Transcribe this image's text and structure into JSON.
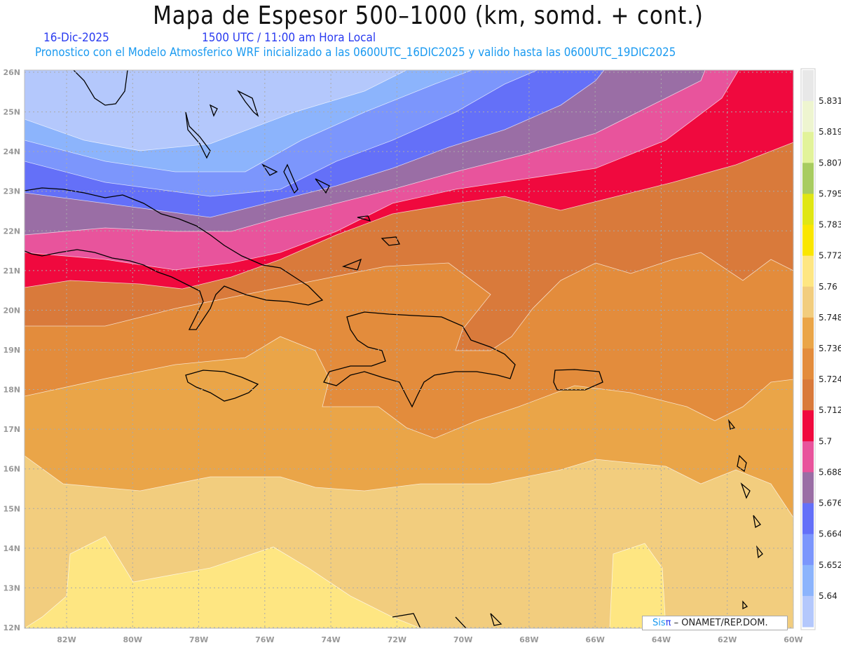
{
  "header": {
    "title": "Mapa de Espesor 500–1000 (km, somd. + cont.)",
    "date": "16-Dic-2025",
    "time": "1500 UTC / 11:00 am Hora Local",
    "description": "Pronostico con el Modelo Atmosferico WRF inicializado a las 0600UTC_16DIC2025 y valido hasta las  0600UTC_19DIC2025"
  },
  "axes": {
    "lat_labels": [
      "26N",
      "25N",
      "24N",
      "23N",
      "22N",
      "21N",
      "20N",
      "19N",
      "18N",
      "17N",
      "16N",
      "15N",
      "14N",
      "13N",
      "12N"
    ],
    "lon_labels": [
      "82W",
      "80W",
      "78W",
      "76W",
      "74W",
      "72W",
      "70W",
      "68W",
      "66W",
      "64W",
      "62W",
      "60W"
    ]
  },
  "colorbar": {
    "labels": [
      "5.831",
      "5.819",
      "5.807",
      "5.795",
      "5.783",
      "5.772",
      "5.76",
      "5.748",
      "5.736",
      "5.724",
      "5.712",
      "5.7",
      "5.688",
      "5.676",
      "5.664",
      "5.652",
      "5.64"
    ],
    "colors": [
      "#e8e8e8",
      "#eef5d0",
      "#e2f39a",
      "#a8cc60",
      "#e0e614",
      "#fae600",
      "#fee682",
      "#f2cd7e",
      "#eaa548",
      "#e38c3c",
      "#d97a3b",
      "#f0093e",
      "#e8549c",
      "#9a6ea5",
      "#6470f8",
      "#7c96fc",
      "#8cb4fc",
      "#b4c8fc"
    ]
  },
  "footer": {
    "sis": "Sis",
    "pi": "π",
    "credit": " –  ONAMET/REP.DOM."
  }
}
